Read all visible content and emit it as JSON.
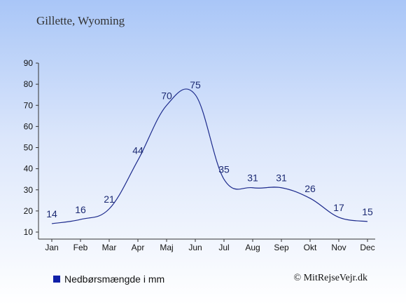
{
  "chart_data": {
    "type": "line",
    "title": "Gillette, Wyoming",
    "categories": [
      "Jan",
      "Feb",
      "Mar",
      "Apr",
      "Maj",
      "Jun",
      "Jul",
      "Aug",
      "Sep",
      "Okt",
      "Nov",
      "Dec"
    ],
    "series": [
      {
        "name": "Nedbørsmængde i mm",
        "values": [
          14,
          16,
          21,
          44,
          70,
          75,
          35,
          31,
          31,
          26,
          17,
          15
        ]
      }
    ],
    "ylim": [
      10,
      90
    ],
    "yticks": [
      10,
      20,
      30,
      40,
      50,
      60,
      70,
      80,
      90
    ],
    "grid": false,
    "legend_position": "bottom-left",
    "line_color": "#1c2a8c",
    "swatch_color": "#1020a8"
  },
  "copyright": "© MitRejseVejr.dk"
}
